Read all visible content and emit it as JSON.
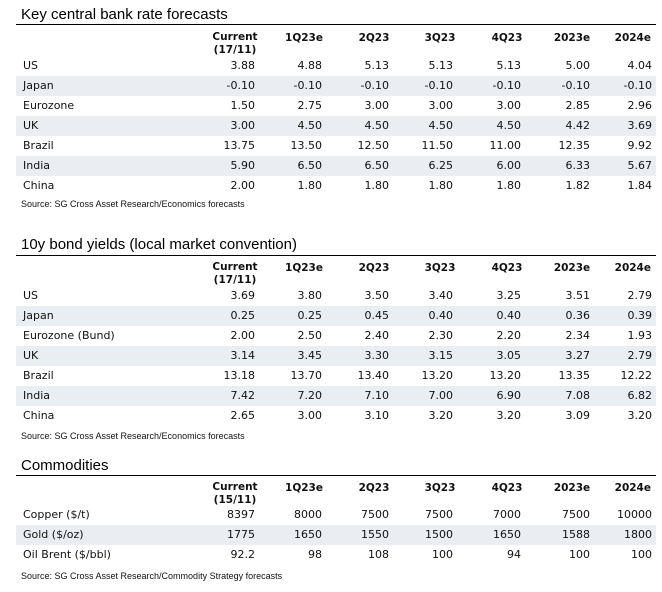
{
  "tables": [
    {
      "title": "Key central bank rate forecasts",
      "header": {
        "current_line1": "Current",
        "current_line2": "(17/11)",
        "cols": [
          "1Q23e",
          "2Q23",
          "3Q23",
          "4Q23",
          "2023e",
          "2024e"
        ]
      },
      "rows": [
        {
          "label": "US",
          "values": [
            "3.88",
            "4.88",
            "5.13",
            "5.13",
            "5.13",
            "5.00",
            "4.04"
          ]
        },
        {
          "label": "Japan",
          "values": [
            "-0.10",
            "-0.10",
            "-0.10",
            "-0.10",
            "-0.10",
            "-0.10",
            "-0.10"
          ]
        },
        {
          "label": "Eurozone",
          "values": [
            "1.50",
            "2.75",
            "3.00",
            "3.00",
            "3.00",
            "2.85",
            "2.96"
          ]
        },
        {
          "label": "UK",
          "values": [
            "3.00",
            "4.50",
            "4.50",
            "4.50",
            "4.50",
            "4.42",
            "3.69"
          ]
        },
        {
          "label": "Brazil",
          "values": [
            "13.75",
            "13.50",
            "12.50",
            "11.50",
            "11.00",
            "12.35",
            "9.92"
          ]
        },
        {
          "label": "India",
          "values": [
            "5.90",
            "6.50",
            "6.50",
            "6.25",
            "6.00",
            "6.33",
            "5.67"
          ]
        },
        {
          "label": "China",
          "values": [
            "2.00",
            "1.80",
            "1.80",
            "1.80",
            "1.80",
            "1.82",
            "1.84"
          ]
        }
      ],
      "source": "Source: SG Cross Asset Research/Economics forecasts"
    },
    {
      "title": "10y bond yields (local market convention)",
      "header": {
        "current_line1": "Current",
        "current_line2": "(17/11)",
        "cols": [
          "1Q23e",
          "2Q23",
          "3Q23",
          "4Q23",
          "2023e",
          "2024e"
        ]
      },
      "rows": [
        {
          "label": "US",
          "values": [
            "3.69",
            "3.80",
            "3.50",
            "3.40",
            "3.25",
            "3.51",
            "2.79"
          ]
        },
        {
          "label": "Japan",
          "values": [
            "0.25",
            "0.25",
            "0.45",
            "0.40",
            "0.40",
            "0.36",
            "0.39"
          ]
        },
        {
          "label": "Eurozone (Bund)",
          "values": [
            "2.00",
            "2.50",
            "2.40",
            "2.30",
            "2.20",
            "2.34",
            "1.93"
          ]
        },
        {
          "label": "UK",
          "values": [
            "3.14",
            "3.45",
            "3.30",
            "3.15",
            "3.05",
            "3.27",
            "2.79"
          ]
        },
        {
          "label": "Brazil",
          "values": [
            "13.18",
            "13.70",
            "13.40",
            "13.20",
            "13.20",
            "13.35",
            "12.22"
          ]
        },
        {
          "label": "India",
          "values": [
            "7.42",
            "7.20",
            "7.10",
            "7.00",
            "6.90",
            "7.08",
            "6.82"
          ]
        },
        {
          "label": "China",
          "values": [
            "2.65",
            "3.00",
            "3.10",
            "3.20",
            "3.20",
            "3.09",
            "3.20"
          ]
        }
      ],
      "source": "Source: SG Cross Asset Research/Economics forecasts"
    },
    {
      "title": "Commodities",
      "header": {
        "current_line1": "Current",
        "current_line2": "(15/11)",
        "cols": [
          "1Q23e",
          "2Q23",
          "3Q23",
          "4Q23",
          "2023e",
          "2024e"
        ]
      },
      "rows": [
        {
          "label": "Copper ($/t)",
          "values": [
            "8397",
            "8000",
            "7500",
            "7500",
            "7000",
            "7500",
            "10000"
          ]
        },
        {
          "label": "Gold ($/oz)",
          "values": [
            "1775",
            "1650",
            "1550",
            "1500",
            "1650",
            "1588",
            "1800"
          ]
        },
        {
          "label": "Oil Brent ($/bbl)",
          "values": [
            "92.2",
            "98",
            "108",
            "100",
            "94",
            "100",
            "100"
          ]
        }
      ],
      "source": "Source: SG Cross Asset Research/Commodity Strategy forecasts"
    }
  ]
}
